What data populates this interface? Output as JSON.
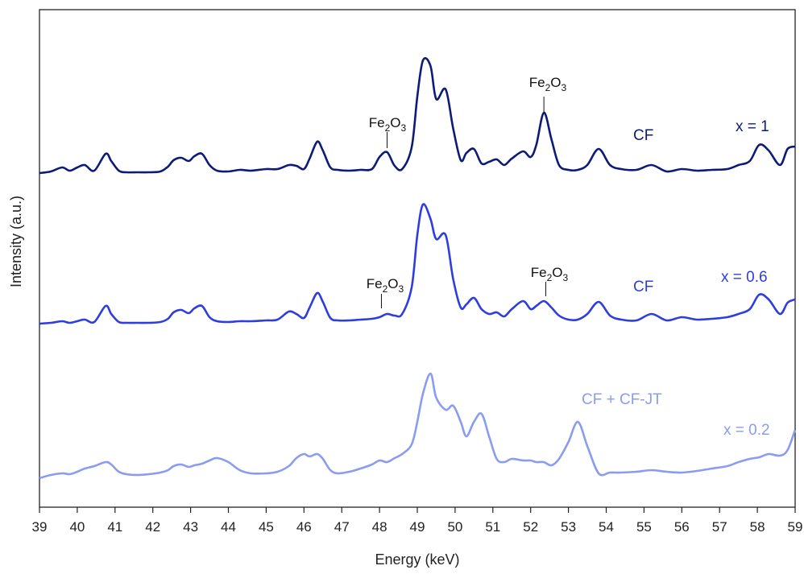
{
  "chart_data": {
    "type": "line",
    "title": "",
    "xlabel": "Energy (keV)",
    "ylabel": "Intensity (a.u.)",
    "xlim": [
      39,
      59
    ],
    "x_ticks": [
      "39",
      "40",
      "41",
      "42",
      "43",
      "44",
      "45",
      "46",
      "47",
      "48",
      "49",
      "50",
      "51",
      "52",
      "53",
      "54",
      "55",
      "56",
      "57",
      "58",
      "59"
    ],
    "y_ticks": [],
    "grid": false,
    "x": [
      39.0,
      39.3,
      39.6,
      39.8,
      40.0,
      40.2,
      40.45,
      40.75,
      40.9,
      41.1,
      41.3,
      41.6,
      41.9,
      42.2,
      42.4,
      42.55,
      42.75,
      42.95,
      43.1,
      43.3,
      43.5,
      43.7,
      44.0,
      44.3,
      44.6,
      45.0,
      45.3,
      45.6,
      45.8,
      46.0,
      46.15,
      46.35,
      46.5,
      46.7,
      46.9,
      47.2,
      47.5,
      47.8,
      48.0,
      48.2,
      48.4,
      48.6,
      48.85,
      49.0,
      49.15,
      49.35,
      49.5,
      49.75,
      49.95,
      50.15,
      50.3,
      50.5,
      50.7,
      50.9,
      51.1,
      51.3,
      51.5,
      51.8,
      52.0,
      52.15,
      52.35,
      52.55,
      52.75,
      53.0,
      53.25,
      53.5,
      53.8,
      54.1,
      54.4,
      54.8,
      55.2,
      55.6,
      56.0,
      56.4,
      56.8,
      57.2,
      57.5,
      57.8,
      58.05,
      58.3,
      58.6,
      58.8,
      59.0
    ],
    "series": [
      {
        "name": "x = 1",
        "color": "#0d1b78",
        "values": [
          0.0,
          0.02,
          0.07,
          0.03,
          0.07,
          0.1,
          0.03,
          0.24,
          0.15,
          0.03,
          0.01,
          0.01,
          0.01,
          0.02,
          0.08,
          0.16,
          0.19,
          0.15,
          0.21,
          0.24,
          0.1,
          0.03,
          0.02,
          0.04,
          0.03,
          0.05,
          0.05,
          0.1,
          0.09,
          0.05,
          0.18,
          0.39,
          0.28,
          0.07,
          0.04,
          0.03,
          0.04,
          0.05,
          0.2,
          0.26,
          0.09,
          0.05,
          0.32,
          0.95,
          1.4,
          1.33,
          0.92,
          1.04,
          0.55,
          0.16,
          0.25,
          0.3,
          0.12,
          0.14,
          0.17,
          0.1,
          0.18,
          0.27,
          0.2,
          0.35,
          0.75,
          0.42,
          0.1,
          0.04,
          0.04,
          0.1,
          0.3,
          0.1,
          0.05,
          0.04,
          0.1,
          0.02,
          0.05,
          0.03,
          0.04,
          0.05,
          0.1,
          0.15,
          0.35,
          0.28,
          0.1,
          0.3,
          0.33
        ]
      },
      {
        "name": "x = 0.6",
        "color": "#2d3de0",
        "values": [
          0.0,
          0.01,
          0.03,
          0.01,
          0.03,
          0.05,
          0.02,
          0.22,
          0.12,
          0.02,
          0.01,
          0.01,
          0.01,
          0.02,
          0.06,
          0.14,
          0.17,
          0.13,
          0.19,
          0.22,
          0.08,
          0.03,
          0.02,
          0.03,
          0.03,
          0.04,
          0.05,
          0.15,
          0.12,
          0.07,
          0.2,
          0.38,
          0.27,
          0.07,
          0.04,
          0.04,
          0.05,
          0.06,
          0.08,
          0.12,
          0.1,
          0.12,
          0.45,
          1.1,
          1.48,
          1.3,
          1.05,
          1.1,
          0.55,
          0.2,
          0.24,
          0.32,
          0.18,
          0.12,
          0.14,
          0.09,
          0.18,
          0.28,
          0.18,
          0.22,
          0.28,
          0.2,
          0.1,
          0.05,
          0.05,
          0.12,
          0.27,
          0.1,
          0.05,
          0.04,
          0.12,
          0.04,
          0.08,
          0.05,
          0.06,
          0.08,
          0.12,
          0.18,
          0.36,
          0.3,
          0.12,
          0.26,
          0.3
        ]
      },
      {
        "name": "x = 0.2",
        "color": "#8a9cf2",
        "values": [
          0.0,
          0.04,
          0.06,
          0.05,
          0.08,
          0.12,
          0.15,
          0.2,
          0.17,
          0.08,
          0.05,
          0.04,
          0.05,
          0.07,
          0.1,
          0.15,
          0.17,
          0.14,
          0.16,
          0.18,
          0.22,
          0.25,
          0.2,
          0.1,
          0.06,
          0.06,
          0.08,
          0.15,
          0.25,
          0.3,
          0.27,
          0.3,
          0.24,
          0.1,
          0.06,
          0.08,
          0.12,
          0.17,
          0.22,
          0.2,
          0.25,
          0.3,
          0.42,
          0.7,
          1.05,
          1.3,
          1.0,
          0.85,
          0.9,
          0.7,
          0.52,
          0.7,
          0.8,
          0.52,
          0.24,
          0.2,
          0.24,
          0.22,
          0.22,
          0.2,
          0.2,
          0.16,
          0.24,
          0.45,
          0.7,
          0.4,
          0.06,
          0.07,
          0.07,
          0.08,
          0.1,
          0.08,
          0.07,
          0.09,
          0.12,
          0.15,
          0.2,
          0.24,
          0.26,
          0.3,
          0.28,
          0.35,
          0.6
        ]
      }
    ],
    "labels": {
      "series": [
        "x = 1",
        "x = 0.6",
        "x = 0.2"
      ],
      "phases": [
        "CF",
        "CF",
        "CF + CF-JT"
      ]
    },
    "annotations": {
      "top": {
        "energies": [
          48.2,
          52.35
        ]
      },
      "mid": {
        "energies": [
          48.05,
          52.4
        ]
      },
      "formula": {
        "a": "Fe",
        "a_sub": "2",
        "b": "O",
        "b_sub": "3"
      }
    }
  }
}
